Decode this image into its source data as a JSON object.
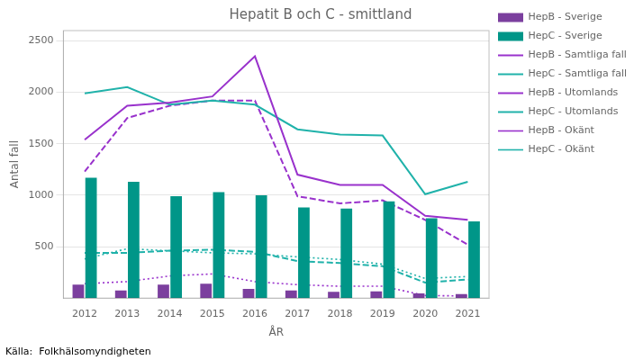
{
  "chart_data": {
    "type": "bar",
    "title": "Hepatit B och C - smittland",
    "x_label": "ÅR",
    "y_label": "Antal fall",
    "annotation": "Källa:  Folkhälsomyndigheten",
    "categories": [
      2012,
      2013,
      2014,
      2015,
      2016,
      2017,
      2018,
      2019,
      2020,
      2021
    ],
    "series": [
      {
        "name": "HepB - Sverige",
        "type": "bar",
        "color": "#7B3F9E",
        "values": [
          130,
          75,
          130,
          140,
          90,
          75,
          60,
          65,
          45,
          40
        ]
      },
      {
        "name": "HepC - Sverige",
        "type": "bar",
        "color": "#009688",
        "values": [
          1170,
          1130,
          990,
          1030,
          1000,
          880,
          870,
          940,
          775,
          745
        ]
      },
      {
        "name": "HepB - Samtliga fall",
        "type": "line",
        "line_style": "solid",
        "color": "#9932CC",
        "values": [
          1540,
          1870,
          1900,
          1960,
          2350,
          1200,
          1100,
          1100,
          800,
          760
        ]
      },
      {
        "name": "HepC - Samtliga fall",
        "type": "line",
        "line_style": "solid",
        "color": "#20B2AA",
        "values": [
          1990,
          2050,
          1880,
          1920,
          1880,
          1640,
          1590,
          1580,
          1010,
          1130
        ]
      },
      {
        "name": "HepB - Utomlands",
        "type": "line",
        "line_style": "dashed",
        "color": "#9932CC",
        "values": [
          1230,
          1750,
          1870,
          1920,
          1920,
          990,
          920,
          950,
          760,
          520
        ]
      },
      {
        "name": "HepC - Utomlands",
        "type": "line",
        "line_style": "dashed",
        "color": "#20B2AA",
        "values": [
          440,
          440,
          460,
          470,
          450,
          360,
          340,
          310,
          150,
          180
        ]
      },
      {
        "name": "HepB - Okänt",
        "type": "line",
        "line_style": "dotted",
        "color": "#9932CC",
        "values": [
          140,
          160,
          215,
          235,
          160,
          130,
          115,
          115,
          25,
          20
        ]
      },
      {
        "name": "HepC - Okänt",
        "type": "line",
        "line_style": "dotted",
        "color": "#20B2AA",
        "values": [
          380,
          480,
          460,
          440,
          430,
          400,
          375,
          330,
          190,
          210
        ]
      }
    ],
    "ylim": [
      0,
      2600
    ],
    "yticks": [
      500,
      1000,
      1500,
      2000,
      2500
    ],
    "grid": "y",
    "legend": "right"
  }
}
